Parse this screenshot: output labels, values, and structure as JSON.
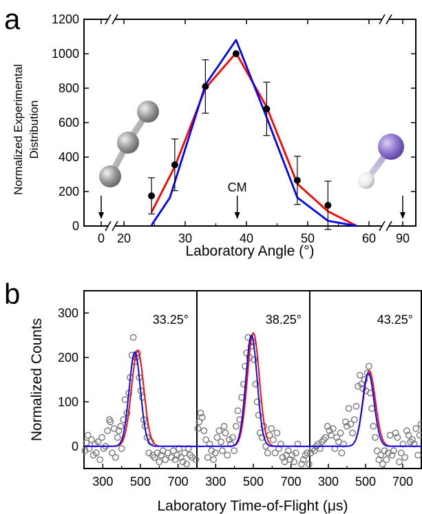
{
  "chart_data": [
    {
      "panel": "a",
      "type": "line",
      "xlabel": "Laboratory Angle (°)",
      "ylabel": [
        "Normalized Experimental",
        "Distribution"
      ],
      "x_ticks": [
        "0",
        "20",
        "30",
        "40",
        "50",
        "60",
        "90"
      ],
      "y_ticks": [
        "0",
        "200",
        "400",
        "600",
        "800",
        "1000",
        "1200"
      ],
      "ylim": [
        0,
        1200
      ],
      "x_axis": "broken: 0 | 20–60 | 90",
      "annotations": [
        "CM"
      ],
      "cm_angle": 38.5,
      "arrow_angles": [
        0,
        38.5,
        90
      ],
      "experimental_points": [
        {
          "x": 24.5,
          "y": 175,
          "err": 105
        },
        {
          "x": 28.3,
          "y": 355,
          "err": 150
        },
        {
          "x": 33.3,
          "y": 810,
          "err": 155
        },
        {
          "x": 38.3,
          "y": 1000,
          "err": 0
        },
        {
          "x": 43.3,
          "y": 680,
          "err": 155
        },
        {
          "x": 48.3,
          "y": 265,
          "err": 140
        },
        {
          "x": 53.3,
          "y": 120,
          "err": 140
        }
      ],
      "series": [
        {
          "color": "#ff0000",
          "x": [
            24.5,
            28.3,
            33.3,
            38.3,
            43.3,
            48.3,
            53.3,
            58.0
          ],
          "y": [
            80,
            345,
            800,
            1005,
            690,
            245,
            85,
            0
          ]
        },
        {
          "color": "#0000ff",
          "x": [
            24.5,
            27.5,
            33.3,
            38.3,
            43.3,
            48.3,
            53.3,
            58.0
          ],
          "y": [
            5,
            165,
            820,
            1080,
            630,
            165,
            30,
            0
          ]
        }
      ]
    },
    {
      "panel": "b",
      "type": "scatter",
      "xlabel": "Laboratory Time-of-Flight (μs)",
      "ylabel": "Normalized Counts",
      "y_ticks": [
        "0",
        "100",
        "200",
        "300"
      ],
      "ylim": [
        -50,
        350
      ],
      "xlim": [
        200,
        800
      ],
      "x_ticks": [
        "300",
        "500",
        "700"
      ],
      "subplots": [
        {
          "angle_label": "33.25°",
          "red_peak": {
            "center": 485,
            "height": 215,
            "width": 33
          },
          "blue_peak": {
            "center": 470,
            "height": 212,
            "width": 30
          },
          "points": [
            [
              205,
              -10
            ],
            [
              212,
              8
            ],
            [
              220,
              25
            ],
            [
              228,
              -5
            ],
            [
              240,
              15
            ],
            [
              250,
              -20
            ],
            [
              258,
              5
            ],
            [
              265,
              -15
            ],
            [
              275,
              10
            ],
            [
              285,
              -30
            ],
            [
              295,
              20
            ],
            [
              305,
              -5
            ],
            [
              315,
              0
            ],
            [
              325,
              35
            ],
            [
              335,
              60
            ],
            [
              340,
              55
            ],
            [
              350,
              -15
            ],
            [
              360,
              40
            ],
            [
              368,
              -25
            ],
            [
              378,
              20
            ],
            [
              385,
              35
            ],
            [
              395,
              45
            ],
            [
              400,
              -5
            ],
            [
              410,
              60
            ],
            [
              418,
              105
            ],
            [
              428,
              75
            ],
            [
              438,
              120
            ],
            [
              445,
              155
            ],
            [
              455,
              205
            ],
            [
              462,
              245
            ],
            [
              470,
              190
            ],
            [
              478,
              200
            ],
            [
              486,
              210
            ],
            [
              494,
              155
            ],
            [
              502,
              125
            ],
            [
              510,
              110
            ],
            [
              518,
              60
            ],
            [
              525,
              45
            ],
            [
              535,
              20
            ],
            [
              545,
              -15
            ],
            [
              555,
              10
            ],
            [
              565,
              -20
            ],
            [
              575,
              -25
            ],
            [
              590,
              -15
            ],
            [
              600,
              -35
            ],
            [
              610,
              -20
            ],
            [
              620,
              -10
            ],
            [
              632,
              -30
            ],
            [
              645,
              -15
            ],
            [
              655,
              -45
            ],
            [
              665,
              -25
            ],
            [
              675,
              -10
            ],
            [
              685,
              -30
            ],
            [
              695,
              -20
            ],
            [
              705,
              -5
            ],
            [
              715,
              -25
            ],
            [
              725,
              -35
            ],
            [
              735,
              -15
            ],
            [
              745,
              -40
            ],
            [
              755,
              -5
            ],
            [
              765,
              -20
            ],
            [
              775,
              -25
            ],
            [
              785,
              -45
            ],
            [
              795,
              -30
            ]
          ]
        },
        {
          "angle_label": "38.25°",
          "red_peak": {
            "center": 500,
            "height": 255,
            "width": 32
          },
          "blue_peak": {
            "center": 490,
            "height": 250,
            "width": 30
          },
          "points": [
            [
              205,
              40
            ],
            [
              212,
              55
            ],
            [
              220,
              75
            ],
            [
              228,
              65
            ],
            [
              238,
              35
            ],
            [
              248,
              15
            ],
            [
              258,
              -25
            ],
            [
              268,
              5
            ],
            [
              278,
              -10
            ],
            [
              288,
              -30
            ],
            [
              298,
              -15
            ],
            [
              308,
              20
            ],
            [
              318,
              35
            ],
            [
              328,
              10
            ],
            [
              335,
              -10
            ],
            [
              345,
              45
            ],
            [
              352,
              30
            ],
            [
              362,
              -20
            ],
            [
              372,
              15
            ],
            [
              380,
              5
            ],
            [
              390,
              20
            ],
            [
              398,
              -10
            ],
            [
              408,
              45
            ],
            [
              418,
              80
            ],
            [
              428,
              60
            ],
            [
              438,
              110
            ],
            [
              448,
              140
            ],
            [
              456,
              180
            ],
            [
              464,
              210
            ],
            [
              472,
              245
            ],
            [
              480,
              200
            ],
            [
              488,
              225
            ],
            [
              496,
              235
            ],
            [
              504,
              195
            ],
            [
              512,
              140
            ],
            [
              520,
              100
            ],
            [
              528,
              70
            ],
            [
              536,
              30
            ],
            [
              546,
              20
            ],
            [
              556,
              45
            ],
            [
              566,
              0
            ],
            [
              576,
              -15
            ],
            [
              586,
              25
            ],
            [
              596,
              40
            ],
            [
              606,
              15
            ],
            [
              616,
              -15
            ],
            [
              626,
              30
            ],
            [
              636,
              -5
            ],
            [
              646,
              5
            ],
            [
              656,
              -25
            ],
            [
              666,
              -35
            ],
            [
              676,
              -20
            ],
            [
              686,
              -10
            ],
            [
              696,
              -30
            ],
            [
              706,
              -20
            ],
            [
              716,
              -35
            ],
            [
              726,
              -15
            ],
            [
              736,
              5
            ],
            [
              746,
              -45
            ],
            [
              756,
              -40
            ],
            [
              766,
              -30
            ],
            [
              776,
              -20
            ],
            [
              786,
              -15
            ],
            [
              796,
              -40
            ]
          ]
        },
        {
          "angle_label": "43.25°",
          "red_peak": {
            "center": 520,
            "height": 170,
            "width": 33
          },
          "blue_peak": {
            "center": 515,
            "height": 165,
            "width": 31
          },
          "points": [
            [
              205,
              -15
            ],
            [
              215,
              -5
            ],
            [
              225,
              -10
            ],
            [
              235,
              0
            ],
            [
              245,
              5
            ],
            [
              255,
              -5
            ],
            [
              265,
              10
            ],
            [
              275,
              15
            ],
            [
              285,
              20
            ],
            [
              295,
              45
            ],
            [
              305,
              35
            ],
            [
              315,
              25
            ],
            [
              325,
              40
            ],
            [
              335,
              -5
            ],
            [
              345,
              20
            ],
            [
              355,
              10
            ],
            [
              365,
              30
            ],
            [
              372,
              -15
            ],
            [
              382,
              5
            ],
            [
              392,
              55
            ],
            [
              400,
              45
            ],
            [
              410,
              85
            ],
            [
              420,
              50
            ],
            [
              430,
              30
            ],
            [
              440,
              60
            ],
            [
              450,
              90
            ],
            [
              460,
              135
            ],
            [
              470,
              160
            ],
            [
              478,
              140
            ],
            [
              486,
              130
            ],
            [
              494,
              150
            ],
            [
              502,
              125
            ],
            [
              510,
              165
            ],
            [
              518,
              180
            ],
            [
              526,
              120
            ],
            [
              534,
              85
            ],
            [
              542,
              45
            ],
            [
              552,
              20
            ],
            [
              562,
              -10
            ],
            [
              572,
              -30
            ],
            [
              582,
              -20
            ],
            [
              592,
              -40
            ],
            [
              602,
              -10
            ],
            [
              612,
              -30
            ],
            [
              622,
              -15
            ],
            [
              632,
              25
            ],
            [
              642,
              -20
            ],
            [
              652,
              -10
            ],
            [
              662,
              30
            ],
            [
              672,
              20
            ],
            [
              682,
              -35
            ],
            [
              692,
              -15
            ],
            [
              702,
              5
            ],
            [
              712,
              -25
            ],
            [
              722,
              35
            ],
            [
              732,
              25
            ],
            [
              742,
              10
            ],
            [
              752,
              15
            ],
            [
              762,
              5
            ],
            [
              772,
              40
            ],
            [
              782,
              -20
            ],
            [
              792,
              25
            ],
            [
              798,
              50
            ]
          ]
        }
      ]
    }
  ],
  "labels": {
    "panel_a": "a",
    "panel_b": "b"
  }
}
